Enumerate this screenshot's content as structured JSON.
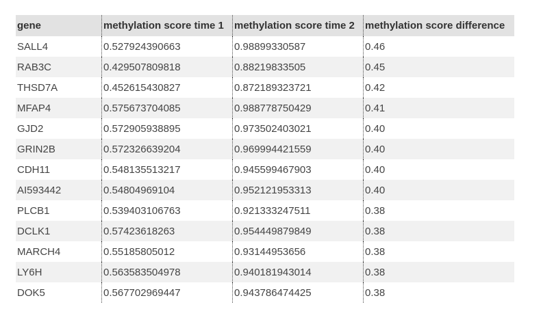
{
  "table": {
    "headers": [
      "gene",
      "methylation score time 1",
      "methylation score time 2",
      "methylation score difference"
    ],
    "rows": [
      [
        "SALL4",
        "0.527924390663",
        "0.98899330587",
        "0.46"
      ],
      [
        "RAB3C",
        "0.429507809818",
        "0.88219833505",
        "0.45"
      ],
      [
        "THSD7A",
        "0.452615430827",
        "0.872189323721",
        "0.42"
      ],
      [
        "MFAP4",
        "0.575673704085",
        "0.988778750429",
        "0.41"
      ],
      [
        "GJD2",
        "0.572905938895",
        "0.973502403021",
        "0.40"
      ],
      [
        "GRIN2B",
        "0.572326639204",
        "0.969994421559",
        "0.40"
      ],
      [
        "CDH11",
        "0.548135513217",
        "0.945599467903",
        "0.40"
      ],
      [
        "AI593442",
        "0.54804969104",
        "0.952121953313",
        "0.40"
      ],
      [
        "PLCB1",
        "0.539403106763",
        "0.921333247511",
        "0.38"
      ],
      [
        "DCLK1",
        "0.57423618263",
        "0.954449879849",
        "0.38"
      ],
      [
        "MARCH4",
        "0.55185805012",
        "0.93144953656",
        "0.38"
      ],
      [
        "LY6H",
        "0.563583504978",
        "0.940181943014",
        "0.38"
      ],
      [
        "DOK5",
        "0.567702969447",
        "0.943786474425",
        "0.38"
      ]
    ]
  }
}
